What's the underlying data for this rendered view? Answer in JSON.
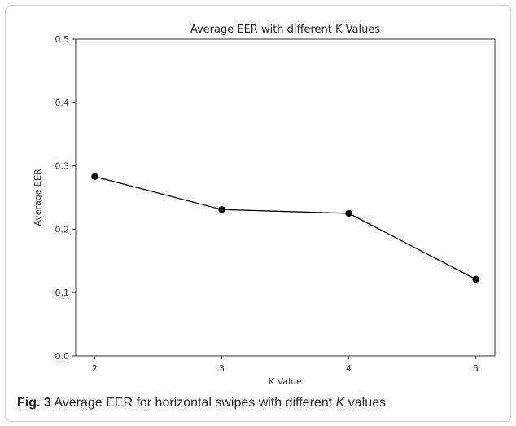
{
  "chart_data": {
    "type": "line",
    "title": "Average EER with different K Values",
    "xlabel": "K Value",
    "ylabel": "Average EER",
    "x": [
      2,
      3,
      4,
      5
    ],
    "series": [
      {
        "values": [
          0.283,
          0.231,
          0.225,
          0.121
        ]
      }
    ],
    "xlim": [
      1.85,
      5.15
    ],
    "ylim": [
      0.0,
      0.5
    ],
    "x_ticks": [
      "2",
      "3",
      "4",
      "5"
    ],
    "y_ticks": [
      "0.0",
      "0.1",
      "0.2",
      "0.3",
      "0.4",
      "0.5"
    ],
    "grid": false,
    "legend": false,
    "colors": {
      "line": "#000000",
      "marker": "#000000",
      "axes": "#333333"
    }
  },
  "caption": {
    "label": "Fig. 3",
    "text_before": "Average EER for horizontal swipes with different",
    "italic": "K",
    "text_after": "values"
  }
}
